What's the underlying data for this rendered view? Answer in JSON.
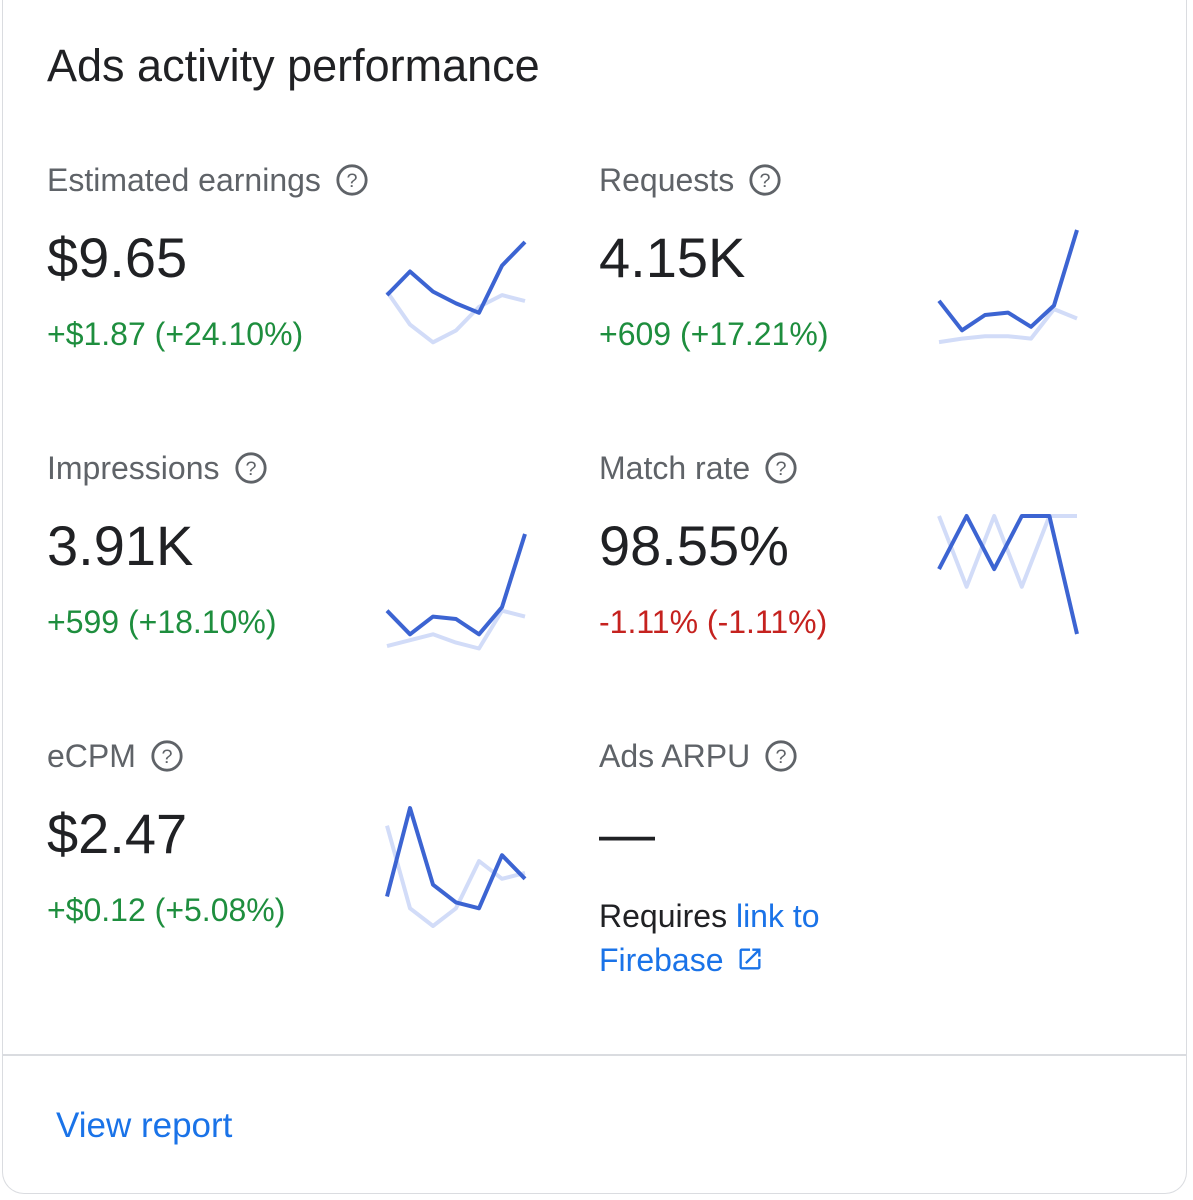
{
  "card": {
    "title": "Ads activity performance",
    "view_report_label": "View report"
  },
  "colors": {
    "positive": "#1e8e3e",
    "negative": "#c5221f",
    "spark_current": "#3c64d2",
    "spark_previous": "#d2dcf8",
    "link": "#1a73e8"
  },
  "icons": {
    "help": "help-circle-icon",
    "external": "open-in-new-icon"
  },
  "metrics": [
    {
      "label": "Estimated earnings",
      "value": "$9.65",
      "change": "+$1.87 (+24.10%)",
      "trend": "positive",
      "sparkline": {
        "current": [
          55,
          75,
          58,
          48,
          40,
          80,
          100
        ],
        "previous": [
          58,
          30,
          15,
          25,
          45,
          55,
          50
        ]
      }
    },
    {
      "label": "Requests",
      "value": "4.15K",
      "change": "+609 (+17.21%)",
      "trend": "positive",
      "sparkline": {
        "current": [
          40,
          15,
          28,
          30,
          18,
          36,
          100
        ],
        "previous": [
          5,
          8,
          10,
          10,
          8,
          33,
          25
        ]
      }
    },
    {
      "label": "Impressions",
      "value": "3.91K",
      "change": "+599 (+18.10%)",
      "trend": "positive",
      "sparkline": {
        "current": [
          35,
          15,
          30,
          28,
          15,
          38,
          100
        ],
        "previous": [
          5,
          10,
          15,
          8,
          3,
          35,
          30
        ]
      }
    },
    {
      "label": "Match rate",
      "value": "98.55%",
      "change": "-1.11% (-1.11%)",
      "trend": "negative",
      "sparkline": {
        "current": [
          55,
          100,
          55,
          100,
          100,
          0
        ],
        "previous": [
          100,
          40,
          100,
          40,
          100,
          100
        ]
      }
    },
    {
      "label": "eCPM",
      "value": "$2.47",
      "change": "+$0.12 (+5.08%)",
      "trend": "positive",
      "sparkline": {
        "current": [
          25,
          100,
          35,
          20,
          15,
          60,
          40
        ],
        "previous": [
          85,
          15,
          0,
          15,
          55,
          40,
          45
        ]
      }
    },
    {
      "label": "Ads ARPU",
      "value": "—",
      "requires_text": "Requires ",
      "link_text": "link to Firebase"
    }
  ]
}
